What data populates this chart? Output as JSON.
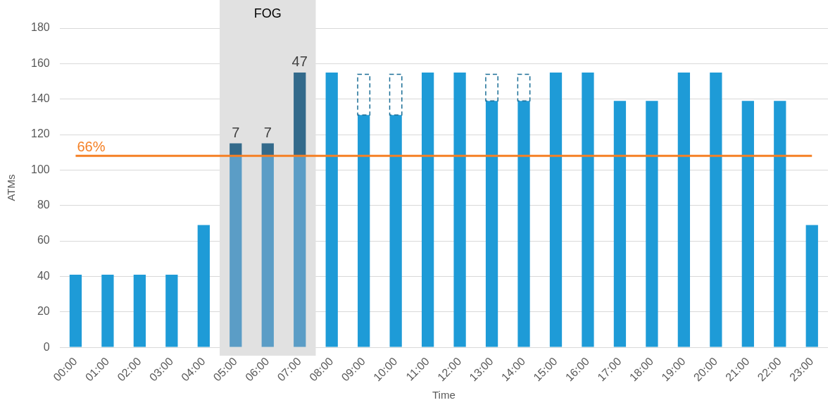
{
  "chart_data": {
    "type": "bar",
    "stacked": true,
    "xlabel": "Time",
    "ylabel": "ATMs",
    "categories": [
      "00:00",
      "01:00",
      "02:00",
      "03:00",
      "04:00",
      "05:00",
      "06:00",
      "07:00",
      "08:00",
      "09:00",
      "10:00",
      "11:00",
      "12:00",
      "13:00",
      "14:00",
      "15:00",
      "16:00",
      "17:00",
      "18:00",
      "19:00",
      "20:00",
      "21:00",
      "22:00",
      "23:00"
    ],
    "series": [
      {
        "color": "#1e9bd7",
        "colors": [
          "#1e9bd7",
          "#1e9bd7",
          "#1e9bd7",
          "#1e9bd7",
          "#1e9bd7",
          "#5b9dc6",
          "#5b9dc6",
          "#5b9dc6",
          "#1e9bd7",
          "#1e9bd7",
          "#1e9bd7",
          "#1e9bd7",
          "#1e9bd7",
          "#1e9bd7",
          "#1e9bd7",
          "#1e9bd7",
          "#1e9bd7",
          "#1e9bd7",
          "#1e9bd7",
          "#1e9bd7",
          "#1e9bd7",
          "#1e9bd7",
          "#1e9bd7",
          "#1e9bd7"
        ],
        "values": [
          41,
          41,
          41,
          41,
          69,
          108,
          108,
          108,
          155,
          131,
          131,
          155,
          155,
          139,
          139,
          155,
          155,
          139,
          139,
          155,
          155,
          139,
          139,
          69
        ]
      },
      {
        "color": "#336a8b",
        "values": [
          null,
          null,
          null,
          null,
          null,
          7,
          7,
          47,
          null,
          null,
          null,
          null,
          null,
          null,
          null,
          null,
          null,
          null,
          null,
          null,
          null,
          null,
          null,
          null
        ],
        "value_labels": [
          null,
          null,
          null,
          null,
          null,
          "7",
          "7",
          "47",
          null,
          null,
          null,
          null,
          null,
          null,
          null,
          null,
          null,
          null,
          null,
          null,
          null,
          null,
          null,
          null
        ]
      },
      {
        "color": "#1a6e96",
        "line_style": "dashed",
        "values": [
          null,
          null,
          null,
          null,
          null,
          null,
          null,
          null,
          null,
          23,
          23,
          null,
          null,
          15,
          15,
          null,
          null,
          null,
          null,
          null,
          null,
          null,
          null,
          null
        ]
      }
    ],
    "ylim": [
      0,
      180
    ],
    "yticks": [
      0,
      20,
      40,
      60,
      80,
      100,
      120,
      140,
      160,
      180
    ],
    "grid": "y",
    "legend": false,
    "ref_lines": [
      {
        "axis": "y",
        "value": 108,
        "color": "#f58025"
      }
    ],
    "annotations": [
      {
        "text": "66%",
        "x": "00:00",
        "y": 108
      }
    ],
    "bands": [
      {
        "axis": "x",
        "from": "05:00",
        "to": "07:00",
        "label": "FOG",
        "color": "#e1e1e1"
      }
    ]
  }
}
